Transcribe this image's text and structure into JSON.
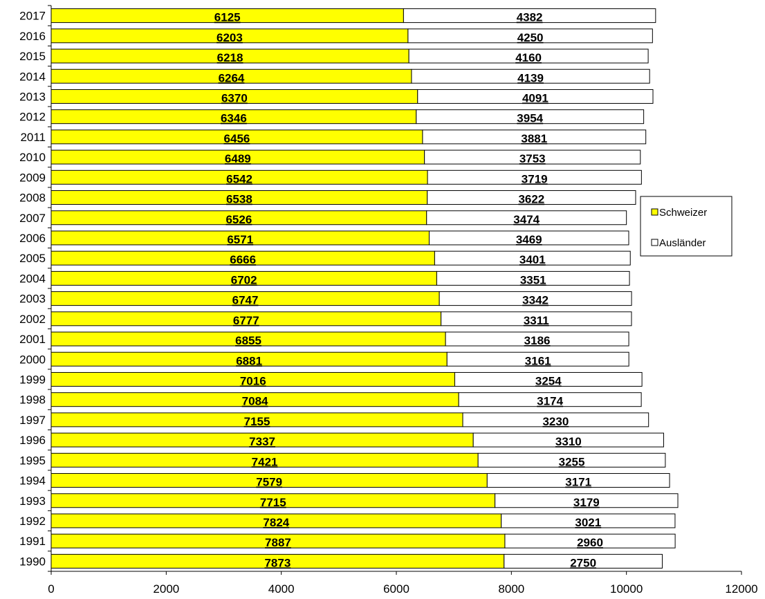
{
  "chart_data": {
    "type": "bar",
    "orientation": "horizontal",
    "stacked": true,
    "categories": [
      "1990",
      "1991",
      "1992",
      "1993",
      "1994",
      "1995",
      "1996",
      "1997",
      "1998",
      "1999",
      "2000",
      "2001",
      "2002",
      "2003",
      "2004",
      "2005",
      "2006",
      "2007",
      "2008",
      "2009",
      "2010",
      "2011",
      "2012",
      "2013",
      "2014",
      "2015",
      "2016",
      "2017"
    ],
    "series": [
      {
        "name": "Schweizer",
        "color": "#ffff00",
        "values": [
          7873,
          7887,
          7824,
          7715,
          7579,
          7421,
          7337,
          7155,
          7084,
          7016,
          6881,
          6855,
          6777,
          6747,
          6702,
          6666,
          6571,
          6526,
          6538,
          6542,
          6489,
          6456,
          6346,
          6370,
          6264,
          6218,
          6203,
          6125
        ]
      },
      {
        "name": "Ausländer",
        "color": "#ffffff",
        "values": [
          2750,
          2960,
          3021,
          3179,
          3171,
          3255,
          3310,
          3230,
          3174,
          3254,
          3161,
          3186,
          3311,
          3342,
          3351,
          3401,
          3469,
          3474,
          3622,
          3719,
          3753,
          3881,
          3954,
          4091,
          4139,
          4160,
          4250,
          4382
        ]
      }
    ],
    "x_ticks": [
      "0",
      "2000",
      "4000",
      "6000",
      "8000",
      "10000",
      "12000"
    ],
    "xlim": [
      0,
      12000
    ],
    "grid": false,
    "legend_position": "right"
  }
}
